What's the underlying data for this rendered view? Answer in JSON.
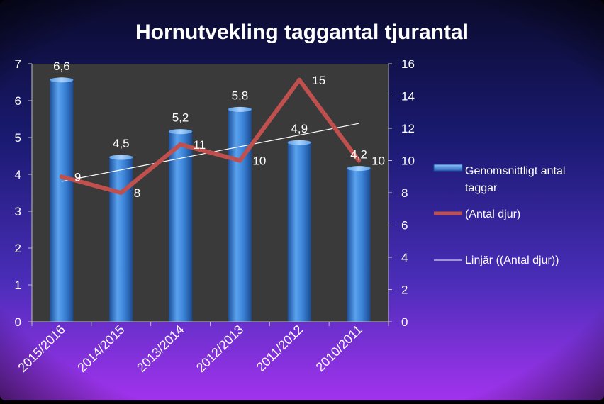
{
  "chart_data": {
    "type": "bar",
    "title": "Hornutvekling taggantal tjurantal",
    "categories": [
      "2015/2016",
      "2014/2015",
      "2013/2014",
      "2012/2013",
      "2011/2012",
      "2010/2011"
    ],
    "series": [
      {
        "name": "Genomsnittligt antal taggar",
        "type": "bar",
        "axis": "left",
        "values": [
          6.6,
          4.5,
          5.2,
          5.8,
          4.9,
          4.2
        ],
        "labels": [
          "6,6",
          "4,5",
          "5,2",
          "5,8",
          "4,9",
          "4,2"
        ],
        "color": "#3a7fd0"
      },
      {
        "name": "(Antal djur)",
        "type": "line",
        "axis": "right",
        "values": [
          9,
          8,
          11,
          10,
          15,
          10
        ],
        "labels": [
          "9",
          "8",
          "11",
          "10",
          "15",
          "10"
        ],
        "color": "#c0504d"
      },
      {
        "name": "Linjär ((Antal djur))",
        "type": "trendline",
        "axis": "right",
        "values": [
          8.7,
          9.5,
          10.2,
          10.9,
          11.6,
          12.3
        ],
        "color": "#ffffff"
      }
    ],
    "left_axis": {
      "min": 0,
      "max": 7,
      "ticks": [
        "0",
        "1",
        "2",
        "3",
        "4",
        "5",
        "6",
        "7"
      ]
    },
    "right_axis": {
      "min": 0,
      "max": 16,
      "ticks": [
        "0",
        "2",
        "4",
        "6",
        "8",
        "10",
        "12",
        "14",
        "16"
      ]
    },
    "legend": {
      "position": "right",
      "entries": [
        {
          "label_lines": [
            "Genomsnittligt antal",
            "taggar"
          ]
        },
        {
          "label_lines": [
            "(Antal djur)"
          ]
        },
        {
          "label_lines": [
            "Linjär ((Antal djur))"
          ]
        }
      ]
    },
    "grid": false,
    "colors": {
      "plot_area": "#3a3a3a",
      "background_top": "#12124a",
      "background_bottom": "#9c2fe6",
      "bar": "#3a7fd0",
      "line": "#c0504d",
      "trend": "#ffffff"
    }
  }
}
